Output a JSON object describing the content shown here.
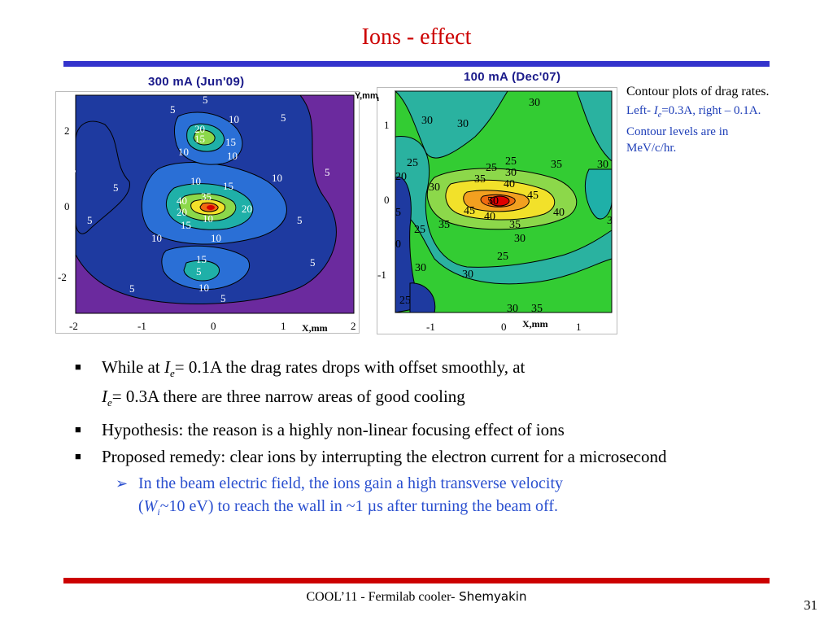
{
  "slide": {
    "title": "Ions - effect",
    "page_number": "31",
    "footer_text": "COOL’11 - Fermilab cooler-",
    "footer_author": " Shemyakin",
    "colors": {
      "title": "#cc0000",
      "top_rule": "#3333cc",
      "bottom_rule": "#cc0000",
      "sub_bullet": "#2a4fcf"
    }
  },
  "figures": {
    "left": {
      "label": "300 mA (Jun'09)",
      "x_ticks": [
        "-2",
        "-1",
        "0",
        "1",
        "2"
      ],
      "y_ticks": [
        "2",
        "0",
        "-2"
      ],
      "x_axis_label": "X,mm",
      "contour_labels": [
        "5",
        "5",
        "5",
        "10",
        "20",
        "15",
        "15",
        "10",
        "10",
        "5",
        "5",
        "10",
        "15",
        "10",
        "5",
        "40",
        "35",
        "20",
        "20",
        "15",
        "10",
        "5",
        "10",
        "5",
        "15",
        "10",
        "5",
        "5",
        "10",
        "5",
        "5"
      ]
    },
    "right": {
      "label": "100 mA (Dec'07)",
      "y_axis_label": "Y,mm",
      "x_axis_label": "X,mm",
      "x_ticks": [
        "-1",
        "0",
        "1"
      ],
      "y_ticks": [
        "1",
        "0",
        "-1"
      ],
      "contour_labels": [
        "30",
        "30",
        "30",
        "25",
        "25",
        "25",
        "30",
        "35",
        "30",
        "35",
        "30",
        "20",
        "5",
        "0",
        "40",
        "45",
        "50",
        "45",
        "40",
        "25",
        "35",
        "40",
        "35",
        "30",
        "3",
        "25",
        "30",
        "30",
        "25",
        "30",
        "35"
      ]
    }
  },
  "caption": {
    "line1": "Contour plots of drag rates.",
    "line2_pre": "Left- ",
    "line2_sym": "I",
    "line2_sub": "e",
    "line2_post": "=0.3A, right – 0.1A. Contour levels are in MeV/c/hr."
  },
  "bullets": {
    "marker": "■",
    "b1_pre": "While at ",
    "b1_sym": "I",
    "b1_sub": "e",
    "b1_mid": "= 0.1A the drag rates drops with offset smoothly, at",
    "b1_sym2": "I",
    "b1_sub2": "e",
    "b1_post": "= 0.3A  there are three narrow areas of good cooling",
    "b2": "Hypothesis: the reason is a highly non-linear focusing effect of ions",
    "b3": "Proposed remedy: clear ions by interrupting the electron current for a microsecond",
    "sub_marker": "➢",
    "sub_line1": "In the beam electric field, the ions gain a high transverse velocity",
    "sub_pre": "(",
    "sub_sym": "W",
    "sub_sub": "i",
    "sub_post": "~10 eV) to reach the wall in ~1 µs after turning the beam off."
  }
}
